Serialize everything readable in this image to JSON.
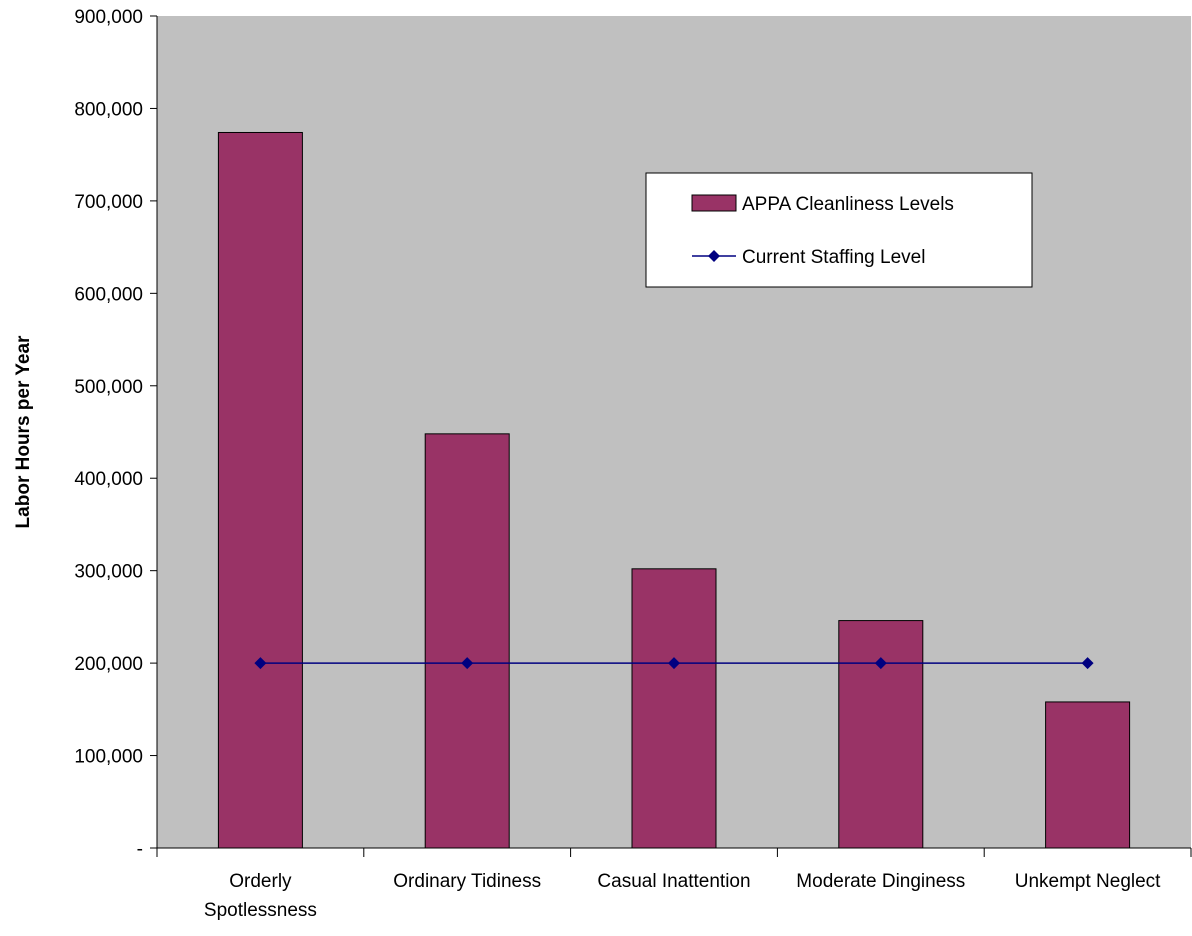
{
  "chart_data": {
    "type": "bar",
    "title": "",
    "xlabel": "",
    "ylabel": "Labor Hours per Year",
    "categories": [
      [
        "Orderly",
        "Spotlessness"
      ],
      [
        "Ordinary Tidiness"
      ],
      [
        "Casual Inattention"
      ],
      [
        "Moderate Dinginess"
      ],
      [
        "Unkempt Neglect"
      ]
    ],
    "series": [
      {
        "name": "APPA Cleanliness Levels",
        "kind": "bar",
        "color": "#993366",
        "values": [
          774000,
          448000,
          302000,
          246000,
          158000
        ]
      },
      {
        "name": "Current Staffing Level",
        "kind": "line",
        "color": "#000080",
        "marker": "diamond",
        "values": [
          200000,
          200000,
          200000,
          200000,
          200000
        ]
      }
    ],
    "ylim": [
      0,
      900000
    ],
    "yticks": [
      0,
      100000,
      200000,
      300000,
      400000,
      500000,
      600000,
      700000,
      800000,
      900000
    ],
    "ytick_labels": [
      "-",
      "100,000",
      "200,000",
      "300,000",
      "400,000",
      "500,000",
      "600,000",
      "700,000",
      "800,000",
      "900,000"
    ],
    "grid": false,
    "legend_position": "top-right",
    "colors": {
      "plot_background": "#c0c0c0",
      "bar_fill": "#993366",
      "line": "#000080",
      "axis": "#000000"
    }
  }
}
